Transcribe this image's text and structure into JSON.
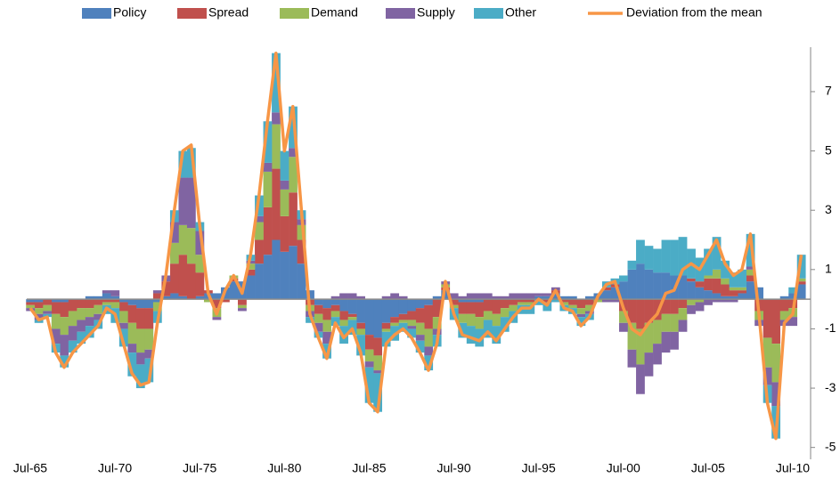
{
  "chart_data": {
    "type": "bar",
    "stacked": true,
    "categories": [
      "Jul-65",
      null,
      null,
      null,
      null,
      null,
      null,
      null,
      null,
      null,
      "Jul-70",
      null,
      null,
      null,
      null,
      null,
      null,
      null,
      null,
      null,
      "Jul-75",
      null,
      null,
      null,
      null,
      null,
      null,
      null,
      null,
      null,
      "Jul-80",
      null,
      null,
      null,
      null,
      null,
      null,
      null,
      null,
      null,
      "Jul-85",
      null,
      null,
      null,
      null,
      null,
      null,
      null,
      null,
      null,
      "Jul-90",
      null,
      null,
      null,
      null,
      null,
      null,
      null,
      null,
      null,
      "Jul-95",
      null,
      null,
      null,
      null,
      null,
      null,
      null,
      null,
      null,
      "Jul-00",
      null,
      null,
      null,
      null,
      null,
      null,
      null,
      null,
      null,
      "Jul-05",
      null,
      null,
      null,
      null,
      null,
      null,
      null,
      null,
      null,
      "Jul-10",
      null
    ],
    "series": [
      {
        "name": "Policy",
        "color": "#4f81bd",
        "values": [
          -0.1,
          -0.1,
          0.0,
          -0.1,
          -0.1,
          0.0,
          0.0,
          0.1,
          0.1,
          0.2,
          0.1,
          -0.1,
          -0.2,
          -0.3,
          -0.3,
          -0.1,
          0.1,
          0.2,
          0.1,
          0.0,
          0.1,
          0.2,
          0.2,
          0.4,
          0.6,
          0.6,
          0.8,
          1.2,
          1.5,
          2.0,
          1.6,
          1.8,
          1.2,
          0.3,
          -0.2,
          -0.3,
          -0.2,
          -0.4,
          -0.5,
          -0.8,
          -1.2,
          -1.3,
          -0.8,
          -0.6,
          -0.5,
          -0.4,
          -0.3,
          -0.2,
          0.1,
          0.3,
          0.0,
          -0.1,
          -0.1,
          -0.1,
          0.0,
          0.0,
          0.0,
          0.0,
          0.0,
          0.0,
          0.1,
          0.1,
          0.2,
          0.1,
          0.1,
          0.0,
          0.1,
          0.2,
          0.3,
          0.4,
          0.6,
          1.0,
          1.2,
          1.0,
          0.9,
          0.9,
          0.8,
          0.8,
          0.6,
          0.4,
          0.3,
          0.2,
          0.1,
          0.1,
          0.2,
          0.6,
          0.4,
          0.0,
          0.0,
          0.1,
          0.2,
          0.5
        ]
      },
      {
        "name": "Spread",
        "color": "#c0504d",
        "values": [
          -0.1,
          -0.2,
          -0.2,
          -0.4,
          -0.5,
          -0.4,
          -0.3,
          -0.3,
          -0.2,
          -0.1,
          -0.1,
          -0.3,
          -0.6,
          -0.7,
          -0.7,
          0.2,
          0.5,
          1.0,
          1.4,
          1.2,
          0.8,
          0.1,
          -0.3,
          -0.1,
          0.1,
          -0.2,
          0.2,
          0.8,
          1.6,
          2.4,
          1.2,
          1.8,
          0.8,
          -0.2,
          -0.3,
          -0.4,
          -0.2,
          -0.3,
          -0.1,
          -0.2,
          -0.5,
          -0.6,
          -0.2,
          -0.2,
          -0.2,
          -0.3,
          -0.5,
          -0.8,
          -0.6,
          0.1,
          -0.2,
          -0.4,
          -0.4,
          -0.5,
          -0.4,
          -0.5,
          -0.3,
          -0.2,
          -0.1,
          -0.1,
          0.0,
          -0.1,
          0.1,
          -0.1,
          -0.2,
          -0.3,
          -0.2,
          0.0,
          0.1,
          0.1,
          -0.4,
          -0.8,
          -1.0,
          -0.8,
          -0.7,
          -0.5,
          -0.5,
          -0.3,
          0.1,
          0.2,
          0.4,
          0.5,
          0.4,
          0.2,
          0.1,
          0.2,
          -0.4,
          -1.3,
          -1.5,
          -0.4,
          -0.3,
          0.1
        ]
      },
      {
        "name": "Demand",
        "color": "#9bbb59",
        "values": [
          -0.1,
          -0.2,
          -0.2,
          -0.5,
          -0.6,
          -0.5,
          -0.4,
          -0.3,
          -0.3,
          -0.1,
          -0.2,
          -0.4,
          -0.7,
          -0.8,
          -0.7,
          -0.3,
          0.0,
          0.7,
          1.0,
          1.2,
          0.6,
          -0.1,
          -0.3,
          0.0,
          0.1,
          -0.1,
          0.2,
          0.6,
          1.2,
          1.5,
          0.9,
          1.2,
          0.5,
          -0.2,
          -0.3,
          -0.4,
          -0.2,
          -0.2,
          -0.1,
          -0.2,
          -0.4,
          -0.5,
          -0.1,
          -0.1,
          -0.1,
          -0.2,
          -0.4,
          -0.6,
          -0.4,
          0.1,
          -0.1,
          -0.3,
          -0.4,
          -0.4,
          -0.3,
          -0.4,
          -0.3,
          -0.2,
          -0.1,
          -0.1,
          0.0,
          0.0,
          0.0,
          -0.1,
          -0.1,
          -0.2,
          -0.2,
          -0.1,
          0.0,
          0.0,
          -0.4,
          -0.9,
          -1.2,
          -1.0,
          -0.8,
          -0.6,
          -0.6,
          -0.4,
          -0.2,
          -0.1,
          0.1,
          0.3,
          0.2,
          0.1,
          0.1,
          0.2,
          -0.3,
          -1.0,
          -1.3,
          -0.3,
          -0.3,
          0.1
        ]
      },
      {
        "name": "Supply",
        "color": "#8064a2",
        "values": [
          -0.1,
          -0.2,
          -0.1,
          -0.5,
          -0.7,
          -0.5,
          -0.4,
          -0.3,
          -0.2,
          0.1,
          0.2,
          -0.2,
          -0.3,
          -0.4,
          -0.3,
          0.1,
          0.2,
          0.7,
          1.6,
          1.7,
          0.8,
          0.0,
          -0.1,
          0.0,
          0.0,
          -0.1,
          0.1,
          0.2,
          0.3,
          0.4,
          0.3,
          0.3,
          0.2,
          -0.2,
          -0.3,
          -0.4,
          0.1,
          0.2,
          0.2,
          0.1,
          -0.2,
          -0.1,
          0.1,
          0.2,
          0.1,
          -0.1,
          -0.2,
          -0.3,
          -0.2,
          0.1,
          0.2,
          0.1,
          0.2,
          0.2,
          0.2,
          0.1,
          0.1,
          0.2,
          0.2,
          0.2,
          0.1,
          0.1,
          0.1,
          0.0,
          0.0,
          -0.1,
          -0.1,
          0.0,
          -0.1,
          -0.1,
          -0.3,
          -0.6,
          -1.0,
          -0.8,
          -0.7,
          -0.7,
          -0.6,
          -0.4,
          -0.3,
          -0.3,
          -0.2,
          -0.1,
          -0.1,
          -0.1,
          0.0,
          0.1,
          -0.2,
          -0.6,
          -0.8,
          -0.2,
          -0.3,
          0.0
        ]
      },
      {
        "name": "Other",
        "color": "#4bacc6",
        "values": [
          0.0,
          -0.1,
          -0.1,
          -0.3,
          -0.4,
          -0.4,
          -0.4,
          -0.4,
          -0.3,
          -0.3,
          -0.5,
          -0.6,
          -0.8,
          -0.8,
          -0.8,
          -0.4,
          0.0,
          0.4,
          0.9,
          1.0,
          0.3,
          0.0,
          0.0,
          0.0,
          0.0,
          0.0,
          0.2,
          0.7,
          1.4,
          2.0,
          1.0,
          1.4,
          0.3,
          -0.2,
          -0.2,
          -0.5,
          -0.3,
          -0.6,
          -0.5,
          -0.7,
          -1.2,
          -1.3,
          -0.5,
          -0.5,
          -0.3,
          -0.3,
          -0.4,
          -0.5,
          -0.4,
          0.0,
          -0.4,
          -0.5,
          -0.6,
          -0.6,
          -0.6,
          -0.6,
          -0.5,
          -0.4,
          -0.3,
          -0.3,
          -0.2,
          -0.3,
          -0.1,
          -0.2,
          -0.2,
          -0.3,
          -0.2,
          0.0,
          0.2,
          0.2,
          0.2,
          0.3,
          0.8,
          0.8,
          0.8,
          1.1,
          1.2,
          1.3,
          1.0,
          0.8,
          0.9,
          1.1,
          0.6,
          0.5,
          0.6,
          1.1,
          0.0,
          -0.6,
          -1.1,
          0.0,
          0.2,
          0.8
        ]
      },
      {
        "name": "Deviation from the mean",
        "type": "line",
        "color": "#f79646",
        "values": [
          -0.3,
          -0.7,
          -0.6,
          -1.8,
          -2.3,
          -1.8,
          -1.5,
          -1.2,
          -0.9,
          -0.3,
          -0.5,
          -1.5,
          -2.5,
          -2.9,
          -2.8,
          -0.8,
          0.8,
          3.0,
          5.0,
          5.2,
          2.5,
          0.2,
          -0.5,
          0.3,
          0.8,
          0.2,
          1.5,
          3.5,
          6.0,
          8.3,
          5.0,
          6.5,
          3.0,
          -0.5,
          -1.3,
          -2.0,
          -0.8,
          -1.3,
          -1.0,
          -1.8,
          -3.5,
          -3.8,
          -1.5,
          -1.2,
          -1.0,
          -1.3,
          -1.8,
          -2.4,
          -1.5,
          0.6,
          -0.5,
          -1.2,
          -1.3,
          -1.4,
          -1.1,
          -1.4,
          -1.0,
          -0.6,
          -0.3,
          -0.3,
          0.0,
          -0.2,
          0.3,
          -0.3,
          -0.4,
          -0.9,
          -0.6,
          0.1,
          0.5,
          0.6,
          -0.3,
          -1.0,
          -1.2,
          -0.8,
          -0.5,
          0.2,
          0.3,
          1.0,
          1.2,
          1.0,
          1.5,
          2.0,
          1.2,
          0.8,
          1.0,
          2.2,
          -0.5,
          -3.5,
          -4.7,
          -0.8,
          -0.5,
          1.5
        ]
      }
    ],
    "ylim": [
      -5.4,
      8.5
    ],
    "yticks": [
      -5,
      -3,
      -1,
      1,
      3,
      5,
      7
    ],
    "y_axis_side": "right",
    "legend": "top"
  }
}
